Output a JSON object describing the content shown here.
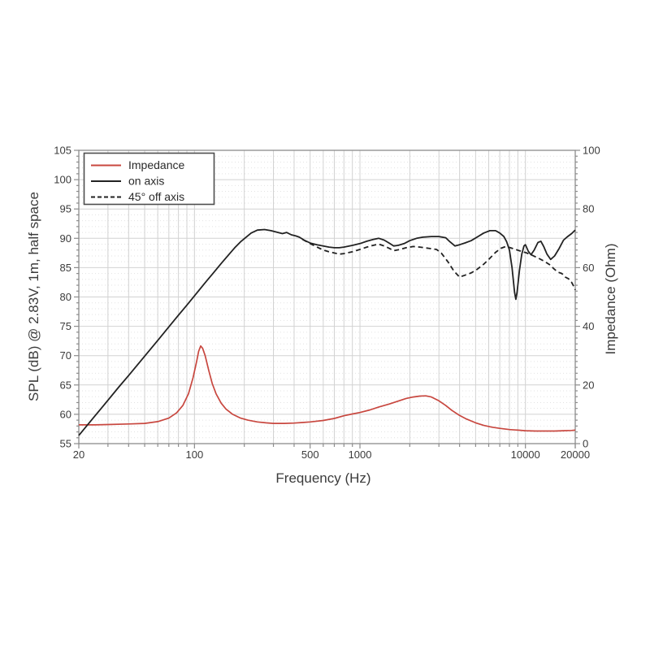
{
  "chart_data": {
    "type": "line",
    "title": "",
    "x_scale": "log",
    "xlabel": "Frequency (Hz)",
    "ylabel_left": "SPL (dB) @ 2.83V, 1m, half space",
    "ylabel_right": "Impedance (Ohm)",
    "x_range": [
      20,
      20000
    ],
    "y_left_range": [
      55,
      105
    ],
    "y_right_range": [
      0,
      100
    ],
    "x_tick_values": [
      20,
      100,
      500,
      1000,
      10000,
      20000
    ],
    "x_tick_labels": [
      "20",
      "100",
      "500",
      "1000",
      "10000",
      "20000"
    ],
    "y_left_ticks": [
      55,
      60,
      65,
      70,
      75,
      80,
      85,
      90,
      95,
      100,
      105
    ],
    "y_right_ticks": [
      0,
      20,
      40,
      60,
      80,
      100
    ],
    "grid": {
      "major_color": "#d2d2d2",
      "minor_color": "#e2e2e2",
      "frame_color": "#8c8c8c",
      "legend_border_color": "#4d4d4d"
    },
    "legend": [
      {
        "label": "Impedance",
        "color": "#c8473f",
        "style": "solid"
      },
      {
        "label": "on axis",
        "color": "#222222",
        "style": "solid"
      },
      {
        "label": "45° off axis",
        "color": "#222222",
        "style": "dashed"
      }
    ],
    "series": [
      {
        "name": "Impedance",
        "axis": "right",
        "unit": "Ohm",
        "color": "#c8473f",
        "style": "solid",
        "points": [
          [
            20,
            6.4
          ],
          [
            25,
            6.4
          ],
          [
            30,
            6.5
          ],
          [
            40,
            6.7
          ],
          [
            50,
            6.9
          ],
          [
            60,
            7.5
          ],
          [
            70,
            8.7
          ],
          [
            78,
            10.5
          ],
          [
            85,
            13.0
          ],
          [
            92,
            17.0
          ],
          [
            98,
            22.5
          ],
          [
            103,
            28.0
          ],
          [
            106,
            31.5
          ],
          [
            109,
            33.3
          ],
          [
            112,
            32.5
          ],
          [
            116,
            30.0
          ],
          [
            122,
            25.0
          ],
          [
            128,
            20.5
          ],
          [
            135,
            17.0
          ],
          [
            145,
            13.8
          ],
          [
            155,
            11.8
          ],
          [
            170,
            10.0
          ],
          [
            190,
            8.7
          ],
          [
            210,
            8.0
          ],
          [
            240,
            7.4
          ],
          [
            270,
            7.1
          ],
          [
            300,
            6.9
          ],
          [
            350,
            6.9
          ],
          [
            400,
            7.0
          ],
          [
            450,
            7.2
          ],
          [
            500,
            7.4
          ],
          [
            600,
            7.9
          ],
          [
            700,
            8.6
          ],
          [
            800,
            9.5
          ],
          [
            900,
            10.1
          ],
          [
            1000,
            10.6
          ],
          [
            1150,
            11.5
          ],
          [
            1300,
            12.5
          ],
          [
            1500,
            13.5
          ],
          [
            1700,
            14.5
          ],
          [
            1900,
            15.4
          ],
          [
            2100,
            15.9
          ],
          [
            2300,
            16.2
          ],
          [
            2500,
            16.3
          ],
          [
            2700,
            15.9
          ],
          [
            3000,
            14.6
          ],
          [
            3300,
            13.0
          ],
          [
            3600,
            11.3
          ],
          [
            4000,
            9.6
          ],
          [
            4400,
            8.4
          ],
          [
            5000,
            7.1
          ],
          [
            5600,
            6.2
          ],
          [
            6300,
            5.6
          ],
          [
            7000,
            5.2
          ],
          [
            8000,
            4.8
          ],
          [
            9000,
            4.6
          ],
          [
            10000,
            4.4
          ],
          [
            11500,
            4.3
          ],
          [
            13000,
            4.3
          ],
          [
            15000,
            4.3
          ],
          [
            17000,
            4.4
          ],
          [
            19000,
            4.5
          ],
          [
            20000,
            4.6
          ]
        ]
      },
      {
        "name": "on axis",
        "axis": "left",
        "unit": "dB",
        "color": "#222222",
        "style": "solid",
        "points": [
          [
            20,
            56.4
          ],
          [
            25,
            59.7
          ],
          [
            30,
            62.4
          ],
          [
            35,
            64.7
          ],
          [
            40,
            66.6
          ],
          [
            50,
            69.9
          ],
          [
            60,
            72.6
          ],
          [
            70,
            74.9
          ],
          [
            80,
            76.9
          ],
          [
            90,
            78.6
          ],
          [
            100,
            80.2
          ],
          [
            115,
            82.3
          ],
          [
            130,
            84.1
          ],
          [
            145,
            85.7
          ],
          [
            160,
            87.1
          ],
          [
            175,
            88.4
          ],
          [
            190,
            89.4
          ],
          [
            205,
            90.2
          ],
          [
            220,
            90.9
          ],
          [
            240,
            91.4
          ],
          [
            265,
            91.5
          ],
          [
            290,
            91.3
          ],
          [
            320,
            91.0
          ],
          [
            340,
            90.8
          ],
          [
            360,
            91.0
          ],
          [
            385,
            90.6
          ],
          [
            410,
            90.4
          ],
          [
            430,
            90.2
          ],
          [
            460,
            89.7
          ],
          [
            500,
            89.2
          ],
          [
            550,
            88.9
          ],
          [
            600,
            88.7
          ],
          [
            650,
            88.5
          ],
          [
            700,
            88.4
          ],
          [
            750,
            88.4
          ],
          [
            800,
            88.5
          ],
          [
            900,
            88.8
          ],
          [
            1000,
            89.1
          ],
          [
            1100,
            89.5
          ],
          [
            1200,
            89.8
          ],
          [
            1300,
            90.0
          ],
          [
            1400,
            89.7
          ],
          [
            1500,
            89.2
          ],
          [
            1600,
            88.7
          ],
          [
            1700,
            88.8
          ],
          [
            1850,
            89.1
          ],
          [
            2000,
            89.6
          ],
          [
            2200,
            90.0
          ],
          [
            2400,
            90.2
          ],
          [
            2700,
            90.3
          ],
          [
            3000,
            90.3
          ],
          [
            3300,
            90.1
          ],
          [
            3500,
            89.4
          ],
          [
            3750,
            88.7
          ],
          [
            4000,
            88.9
          ],
          [
            4300,
            89.2
          ],
          [
            4700,
            89.6
          ],
          [
            5100,
            90.2
          ],
          [
            5600,
            90.9
          ],
          [
            6100,
            91.3
          ],
          [
            6600,
            91.3
          ],
          [
            7000,
            90.9
          ],
          [
            7400,
            90.3
          ],
          [
            7700,
            89.4
          ],
          [
            8000,
            88.0
          ],
          [
            8300,
            85.0
          ],
          [
            8600,
            80.8
          ],
          [
            8750,
            79.6
          ],
          [
            8900,
            80.8
          ],
          [
            9200,
            84.5
          ],
          [
            9500,
            87.3
          ],
          [
            9800,
            88.7
          ],
          [
            10000,
            88.9
          ],
          [
            10400,
            87.8
          ],
          [
            10800,
            87.2
          ],
          [
            11300,
            88.0
          ],
          [
            11900,
            89.3
          ],
          [
            12400,
            89.5
          ],
          [
            12900,
            88.6
          ],
          [
            13500,
            87.3
          ],
          [
            14200,
            86.4
          ],
          [
            15000,
            87.0
          ],
          [
            16000,
            88.3
          ],
          [
            17000,
            89.7
          ],
          [
            18000,
            90.3
          ],
          [
            19000,
            90.8
          ],
          [
            20000,
            91.4
          ]
        ]
      },
      {
        "name": "45° off axis",
        "axis": "left",
        "unit": "dB",
        "color": "#222222",
        "style": "dashed",
        "points": [
          [
            450,
            89.8
          ],
          [
            500,
            89.1
          ],
          [
            550,
            88.5
          ],
          [
            600,
            88.0
          ],
          [
            650,
            87.7
          ],
          [
            700,
            87.5
          ],
          [
            750,
            87.3
          ],
          [
            800,
            87.4
          ],
          [
            900,
            87.7
          ],
          [
            1000,
            88.1
          ],
          [
            1100,
            88.5
          ],
          [
            1200,
            88.8
          ],
          [
            1300,
            89.0
          ],
          [
            1400,
            88.7
          ],
          [
            1500,
            88.3
          ],
          [
            1600,
            87.9
          ],
          [
            1750,
            88.1
          ],
          [
            1900,
            88.4
          ],
          [
            2100,
            88.6
          ],
          [
            2300,
            88.5
          ],
          [
            2600,
            88.3
          ],
          [
            2900,
            88.1
          ],
          [
            3100,
            87.5
          ],
          [
            3400,
            86.0
          ],
          [
            3700,
            84.4
          ],
          [
            4000,
            83.4
          ],
          [
            4300,
            83.7
          ],
          [
            4700,
            84.1
          ],
          [
            5100,
            84.7
          ],
          [
            5600,
            85.6
          ],
          [
            6100,
            86.6
          ],
          [
            6600,
            87.6
          ],
          [
            7100,
            88.3
          ],
          [
            7600,
            88.6
          ],
          [
            8100,
            88.4
          ],
          [
            8700,
            88.1
          ],
          [
            9400,
            87.8
          ],
          [
            10200,
            87.5
          ],
          [
            11000,
            87.1
          ],
          [
            12000,
            86.6
          ],
          [
            13000,
            86.1
          ],
          [
            14000,
            85.5
          ],
          [
            15000,
            84.7
          ],
          [
            15800,
            84.2
          ],
          [
            16600,
            84.0
          ],
          [
            17400,
            83.4
          ],
          [
            18200,
            83.1
          ],
          [
            19000,
            82.5
          ],
          [
            19600,
            81.8
          ],
          [
            20000,
            81.2
          ]
        ]
      }
    ]
  }
}
